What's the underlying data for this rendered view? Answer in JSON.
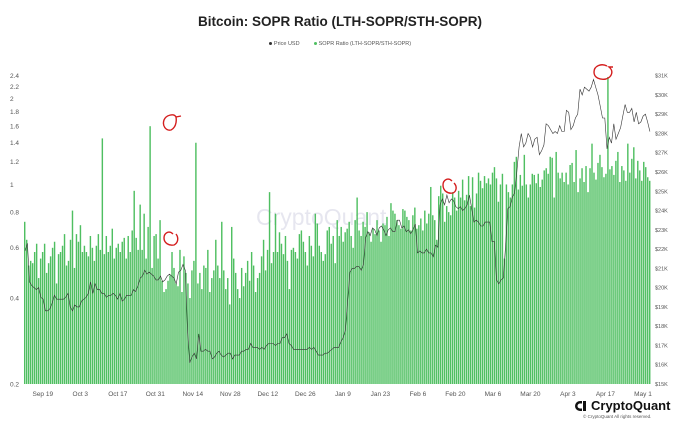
{
  "header": {
    "title": "Bitcoin: SOPR Ratio (LTH-SOPR/STH-SOPR)"
  },
  "legend": [
    {
      "label": "Price USD",
      "color": "#333333"
    },
    {
      "label": "SOPR Ratio (LTH-SOPR/STH-SOPR)",
      "color": "#4fbf61"
    }
  ],
  "watermark": "CryptoQuant",
  "brand": {
    "name": "CryptoQuant",
    "copyright": "© CryptoQuant All rights reserved."
  },
  "chart_data": {
    "type": "bar+line",
    "title": "Bitcoin: SOPR Ratio (LTH-SOPR/STH-SOPR)",
    "x_tick_labels": [
      "Sep 19",
      "Oct 3",
      "Oct 17",
      "Oct 31",
      "Nov 14",
      "Nov 28",
      "Dec 12",
      "Dec 26",
      "Jan 9",
      "Jan 23",
      "Feb 6",
      "Feb 20",
      "Mar 6",
      "Mar 20",
      "Apr 3",
      "Apr 17",
      "May 1"
    ],
    "x_range": [
      "2022-09-12",
      "2023-05-04"
    ],
    "left_axis": {
      "scale": "log",
      "range": [
        0.2,
        2.6
      ],
      "ticks": [
        "0.2",
        "0.4",
        "0.6",
        "0.8",
        "1",
        "1.2",
        "1.4",
        "1.6",
        "1.8",
        "2",
        "2.2",
        "2.4"
      ]
    },
    "right_axis": {
      "range": [
        15000,
        31500
      ],
      "ticks": [
        "$15K",
        "$16K",
        "$17K",
        "$18K",
        "$19K",
        "$20K",
        "$21K",
        "$22K",
        "$23K",
        "$24K",
        "$25K",
        "$26K",
        "$27K",
        "$28K",
        "$29K",
        "$30K",
        "$31K"
      ]
    },
    "series": [
      {
        "name": "SOPR Ratio (LTH-SOPR/STH-SOPR)",
        "kind": "bar",
        "color": "#4fbf61",
        "values": [
          0.74,
          0.64,
          0.52,
          0.54,
          0.53,
          0.58,
          0.62,
          0.47,
          0.55,
          0.58,
          0.62,
          0.49,
          0.53,
          0.56,
          0.6,
          0.63,
          0.45,
          0.57,
          0.58,
          0.61,
          0.67,
          0.52,
          0.54,
          0.64,
          0.81,
          0.51,
          0.67,
          0.63,
          0.72,
          0.58,
          0.61,
          0.58,
          0.56,
          0.66,
          0.6,
          0.54,
          0.61,
          0.67,
          0.59,
          1.45,
          0.57,
          0.66,
          0.58,
          0.61,
          0.7,
          0.55,
          0.6,
          0.62,
          0.58,
          0.63,
          0.65,
          0.55,
          0.66,
          0.58,
          0.69,
          0.95,
          0.65,
          0.59,
          0.85,
          0.59,
          0.79,
          0.55,
          0.71,
          1.6,
          0.51,
          0.66,
          0.67,
          0.55,
          0.75,
          0.46,
          0.42,
          0.43,
          0.46,
          0.48,
          0.58,
          0.51,
          0.45,
          0.44,
          0.59,
          0.42,
          0.56,
          0.49,
          0.45,
          0.4,
          0.5,
          0.54,
          1.4,
          0.45,
          0.49,
          0.43,
          0.52,
          0.51,
          0.59,
          0.42,
          0.47,
          0.5,
          0.64,
          0.52,
          0.47,
          0.74,
          0.5,
          0.43,
          0.47,
          0.38,
          0.71,
          0.55,
          0.49,
          0.43,
          0.4,
          0.51,
          0.44,
          0.49,
          0.54,
          0.46,
          0.58,
          0.52,
          0.42,
          0.47,
          0.49,
          0.56,
          0.64,
          0.5,
          0.59,
          0.94,
          0.53,
          0.58,
          0.79,
          0.58,
          0.68,
          0.62,
          0.57,
          0.66,
          0.54,
          0.43,
          0.59,
          0.6,
          0.58,
          0.55,
          0.67,
          0.69,
          0.63,
          0.58,
          0.52,
          0.66,
          0.61,
          0.56,
          0.79,
          0.73,
          0.61,
          0.58,
          0.54,
          0.57,
          0.69,
          0.71,
          0.62,
          0.66,
          0.53,
          0.75,
          0.66,
          0.71,
          0.63,
          0.68,
          0.7,
          0.74,
          0.66,
          0.6,
          0.75,
          0.9,
          0.69,
          0.66,
          0.74,
          0.71,
          0.8,
          0.68,
          0.63,
          0.7,
          0.67,
          0.75,
          0.69,
          0.63,
          0.73,
          0.72,
          0.77,
          0.66,
          0.86,
          0.81,
          0.79,
          0.75,
          0.72,
          0.7,
          0.82,
          0.81,
          0.77,
          0.75,
          0.69,
          0.78,
          0.83,
          0.7,
          0.72,
          0.76,
          0.69,
          0.81,
          0.73,
          0.79,
          0.98,
          0.78,
          0.75,
          0.64,
          0.91,
          0.99,
          0.93,
          0.74,
          0.84,
          0.8,
          0.78,
          0.94,
          0.9,
          0.81,
          0.95,
          0.9,
          1.04,
          0.88,
          0.92,
          1.07,
          0.84,
          1.06,
          0.83,
          0.93,
          1.1,
          1.03,
          0.97,
          1.07,
          1.01,
          1.05,
          1.0,
          1.1,
          1.15,
          1.05,
          0.87,
          1.0,
          1.09,
          0.55,
          1.0,
          0.94,
          0.9,
          1.0,
          1.2,
          1.25,
          0.96,
          1.08,
          0.99,
          1.27,
          1.0,
          0.9,
          1.0,
          1.09,
          1.08,
          1.01,
          1.09,
          0.98,
          1.04,
          1.12,
          1.14,
          1.09,
          1.25,
          1.24,
          0.9,
          1.3,
          1.1,
          1.05,
          1.1,
          1.02,
          1.1,
          1.0,
          1.17,
          1.19,
          1.02,
          1.32,
          0.94,
          1.05,
          1.14,
          1.02,
          1.16,
          0.94,
          1.14,
          1.39,
          1.1,
          1.04,
          1.19,
          1.27,
          1.15,
          1.06,
          1.09,
          2.38,
          1.13,
          1.16,
          1.08,
          1.21,
          1.3,
          1.02,
          1.16,
          1.12,
          1.03,
          1.39,
          1.1,
          1.23,
          1.35,
          1.05,
          1.21,
          1.12,
          1.03,
          1.2,
          1.15,
          1.06,
          1.03
        ]
      },
      {
        "name": "Price USD",
        "kind": "line",
        "color": "#333333",
        "values": [
          21900,
          22300,
          20300,
          20100,
          20000,
          19900,
          20000,
          19500,
          19400,
          18800,
          18800,
          18900,
          19200,
          19600,
          19400,
          19400,
          19400,
          19400,
          19500,
          19700,
          19000,
          18800,
          19100,
          19000,
          19000,
          19300,
          19400,
          19500,
          19700,
          20300,
          19700,
          20200,
          19900,
          19900,
          19700,
          19700,
          19500,
          19600,
          19600,
          19700,
          19600,
          19400,
          19700,
          19300,
          19400,
          19600,
          19600,
          19600,
          19900,
          19800,
          20100,
          20500,
          20600,
          20900,
          20700,
          20800,
          20700,
          20600,
          20400,
          20400,
          20600,
          20300,
          20400,
          20600,
          20700,
          20600,
          20500,
          20200,
          20800,
          20900,
          21200,
          20900,
          17800,
          16100,
          16400,
          16600,
          16300,
          17600,
          16700,
          16700,
          16800,
          16700,
          16700,
          16300,
          16400,
          16600,
          16700,
          16500,
          16400,
          16500,
          16600,
          16600,
          16300,
          16500,
          16500,
          16500,
          16700,
          16700,
          16800,
          16800,
          17100,
          16900,
          16900,
          16900,
          16800,
          16900,
          16800,
          17000,
          17100,
          17100,
          17100,
          17000,
          17100,
          17100,
          17400,
          17400,
          17600,
          17100,
          17000,
          16800,
          16800,
          16800,
          16800,
          16800,
          16800,
          16800,
          16900,
          16800,
          16900,
          16700,
          16500,
          16500,
          16500,
          16600,
          16600,
          16700,
          16800,
          16900,
          16900,
          16900,
          17200,
          17400,
          17800,
          19300,
          20800,
          21000,
          21000,
          21100,
          21100,
          20900,
          21200,
          22600,
          22900,
          22700,
          23100,
          23000,
          22700,
          23100,
          23200,
          23000,
          22700,
          23000,
          23100,
          22900,
          22900,
          23500,
          23500,
          23100,
          23200,
          22900,
          23000,
          22800,
          23000,
          23300,
          21800,
          21900,
          21800,
          21800,
          22000,
          21800,
          21800,
          21600,
          22200,
          22100,
          24300,
          24600,
          24300,
          24800,
          24400,
          24600,
          24500,
          24200,
          24100,
          24200,
          24000,
          24100,
          24300,
          24800,
          24100,
          23400,
          23500,
          23400,
          23200,
          23200,
          23400,
          23400,
          23400,
          22400,
          22400,
          20400,
          20200,
          20400,
          20500,
          22100,
          24100,
          24200,
          24700,
          24900,
          26000,
          27300,
          28000,
          27300,
          27500,
          28000,
          27800,
          27300,
          27700,
          27800,
          26900,
          27100,
          27400,
          28500,
          28400,
          28200,
          28000,
          28100,
          28000,
          28400,
          28100,
          28100,
          29200,
          29100,
          28200,
          28400,
          28800,
          29000,
          30300,
          30000,
          30400,
          30300,
          30200,
          30400,
          30800,
          30400,
          30000,
          29400,
          28800,
          28800,
          27200,
          27800,
          27500,
          28500,
          27700,
          28000,
          28300,
          28900,
          29500,
          29100,
          29100,
          29300,
          28600,
          29100,
          28500,
          28600,
          28900,
          29000,
          28600,
          28100
        ]
      }
    ]
  }
}
